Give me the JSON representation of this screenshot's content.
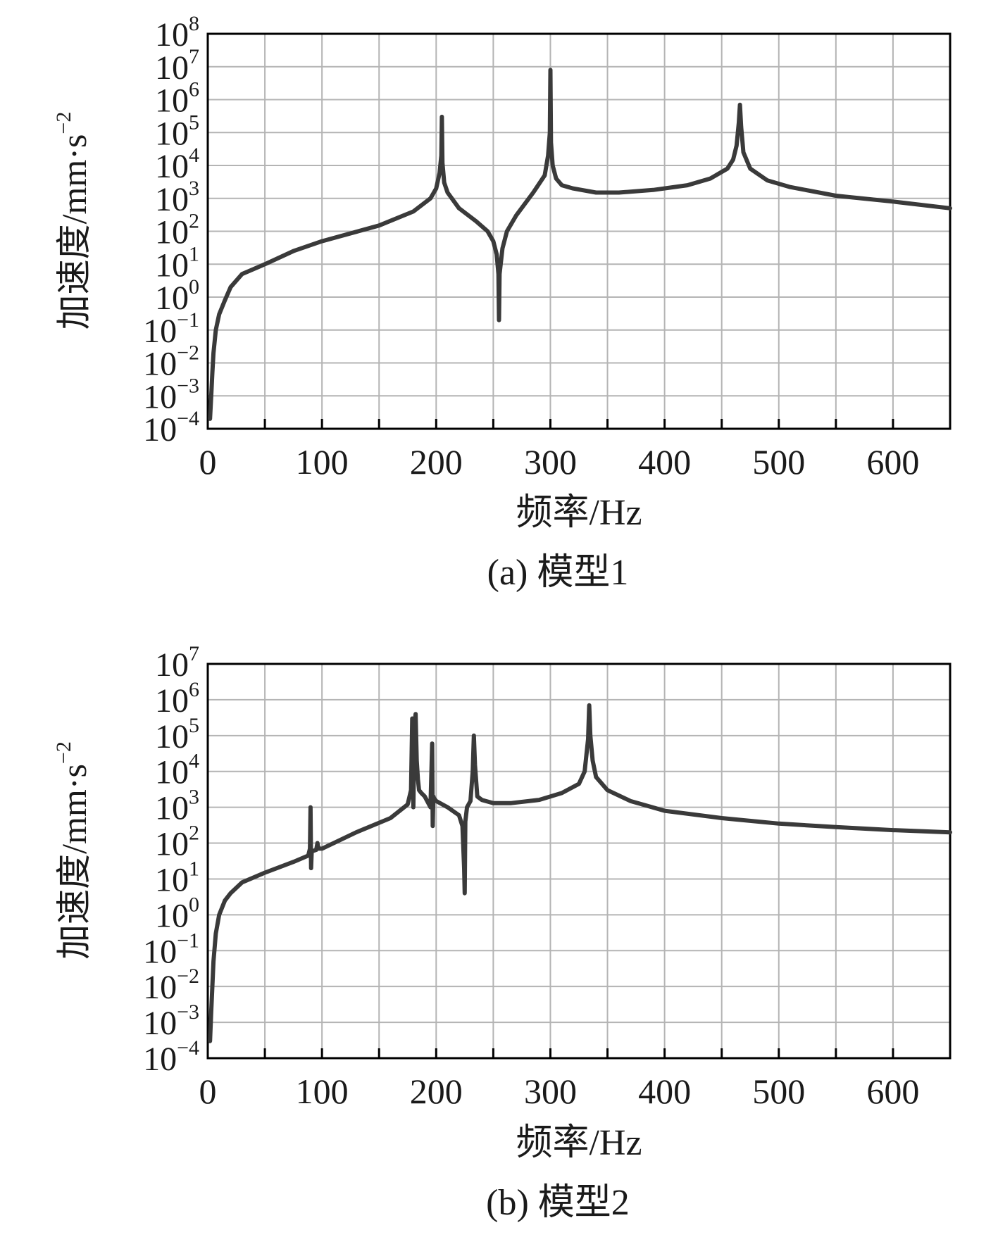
{
  "figure": {
    "panels": [
      {
        "caption": "(a) 模型1"
      },
      {
        "caption": "(b) 模型2"
      }
    ]
  },
  "colors": {
    "line": "#3a3a3a",
    "grid": "#b4b4b4",
    "axis": "#000000"
  },
  "chart_data": [
    {
      "type": "line",
      "title": "",
      "xlabel": "频率/Hz",
      "ylabel": "加速度/mm·s⁻²",
      "ylabel_main": "加速度/mm·s",
      "ylabel_exp": "−2",
      "xscale": "linear",
      "yscale": "log",
      "xlim": [
        0,
        650
      ],
      "ylim_exp": [
        -4,
        8
      ],
      "xticks": [
        0,
        100,
        200,
        300,
        400,
        500,
        600
      ],
      "xtick_labels": [
        "0",
        "100",
        "200",
        "300",
        "400",
        "500",
        "600"
      ],
      "ytick_exponents": [
        -4,
        -3,
        -2,
        -1,
        0,
        1,
        2,
        3,
        4,
        5,
        6,
        7,
        8
      ],
      "ytick_exp_labels": [
        "−4",
        "−3",
        "−2",
        "−1",
        "0",
        "1",
        "2",
        "3",
        "4",
        "5",
        "6",
        "7",
        "8"
      ],
      "ytick_base": "10",
      "grid": true,
      "series": [
        {
          "x": [
            2,
            3,
            4,
            5,
            7,
            10,
            15,
            20,
            30,
            50,
            75,
            100,
            150,
            180,
            195,
            200,
            203,
            204.5,
            205,
            205.5,
            207,
            210,
            220,
            235,
            245,
            250,
            253,
            254.5,
            255,
            255.5,
            258,
            262,
            270,
            285,
            295,
            298,
            299.5,
            300,
            300.5,
            302,
            305,
            310,
            320,
            340,
            360,
            390,
            420,
            440,
            455,
            460,
            463,
            465,
            466,
            467,
            469,
            475,
            490,
            510,
            550,
            600,
            650
          ],
          "y": [
            0.0002,
            0.001,
            0.005,
            0.02,
            0.1,
            0.3,
            0.8,
            2,
            5,
            10,
            25,
            50,
            150,
            400,
            1000,
            2000,
            6000,
            20000,
            300000,
            12000,
            3000,
            1500,
            500,
            200,
            100,
            50,
            20,
            5,
            0.2,
            5,
            30,
            100,
            300,
            1500,
            5000,
            20000,
            100000,
            8000000,
            50000,
            10000,
            4000,
            2500,
            2000,
            1500,
            1500,
            1800,
            2500,
            4000,
            8000,
            15000,
            40000,
            200000,
            700000,
            150000,
            25000,
            8000,
            3500,
            2200,
            1200,
            800,
            500
          ]
        }
      ]
    },
    {
      "type": "line",
      "title": "",
      "xlabel": "频率/Hz",
      "ylabel": "加速度/mm·s⁻²",
      "ylabel_main": "加速度/mm·s",
      "ylabel_exp": "−2",
      "xscale": "linear",
      "yscale": "log",
      "xlim": [
        0,
        650
      ],
      "ylim_exp": [
        -4,
        7
      ],
      "xticks": [
        0,
        100,
        200,
        300,
        400,
        500,
        600
      ],
      "xtick_labels": [
        "0",
        "100",
        "200",
        "300",
        "400",
        "500",
        "600"
      ],
      "ytick_exponents": [
        -4,
        -3,
        -2,
        -1,
        0,
        1,
        2,
        3,
        4,
        5,
        6,
        7
      ],
      "ytick_exp_labels": [
        "−4",
        "−3",
        "−2",
        "−1",
        "0",
        "1",
        "2",
        "3",
        "4",
        "5",
        "6",
        "7"
      ],
      "ytick_base": "10",
      "grid": true,
      "series": [
        {
          "x": [
            2,
            3,
            4,
            5,
            7,
            10,
            15,
            20,
            30,
            50,
            75,
            88,
            89.5,
            90,
            90.5,
            91,
            92,
            95,
            96,
            97,
            100,
            130,
            160,
            175,
            178,
            179,
            180,
            181,
            182,
            183,
            184,
            185,
            187,
            190,
            195,
            196.5,
            197,
            197.5,
            198,
            200,
            210,
            220,
            223,
            224.5,
            225,
            225.5,
            227,
            230,
            232,
            233,
            234,
            236,
            240,
            250,
            265,
            290,
            310,
            325,
            330,
            333,
            334,
            335,
            337,
            340,
            350,
            370,
            400,
            450,
            500,
            550,
            600,
            650
          ],
          "y": [
            0.0003,
            0.002,
            0.01,
            0.05,
            0.3,
            1,
            2.5,
            4,
            8,
            15,
            30,
            45,
            70,
            1000,
            20,
            60,
            60,
            65,
            100,
            70,
            70,
            200,
            500,
            1200,
            3000,
            300000,
            1000,
            200000,
            400000,
            20000,
            6000,
            3000,
            2500,
            2000,
            1000,
            60000,
            300,
            2000,
            1800,
            1500,
            1000,
            600,
            300,
            20,
            4,
            400,
            1000,
            1500,
            10000,
            100000,
            15000,
            2000,
            1600,
            1300,
            1300,
            1600,
            2500,
            4500,
            10000,
            80000,
            700000,
            100000,
            20000,
            7000,
            3000,
            1500,
            800,
            500,
            350,
            280,
            230,
            200
          ]
        }
      ]
    }
  ]
}
